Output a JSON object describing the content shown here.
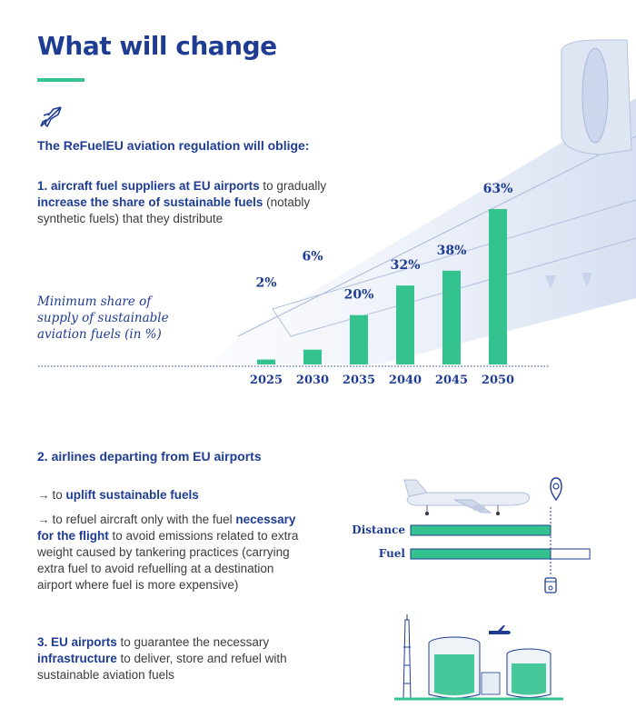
{
  "title": "What will change",
  "intro": "The ReFuelEU aviation regulation will oblige:",
  "obligation1": {
    "prefix": "1. aircraft fuel suppliers at EU airports",
    "t1": " to gradually ",
    "bold2": "increase the share of sustainable fuels",
    "t2": " (notably synthetic fuels) that they distribute"
  },
  "obligation2": {
    "heading": "2. airlines departing from EU airports",
    "bullet1_pre": "to ",
    "bullet1_bold": "uplift sustainable fuels",
    "bullet2_pre": "to refuel aircraft only with the fuel ",
    "bullet2_bold": "necessary for the flight",
    "bullet2_post": " to avoid emissions related to extra weight caused by tankering practices (carrying extra fuel to avoid refuelling at a destination airport where fuel is more expensive)"
  },
  "obligation3": {
    "prefix": "3. EU airports",
    "t1": " to guarantee the necessary ",
    "bold": "infrastructure",
    "t2": " to deliver, store and refuel with sustainable aviation fuels"
  },
  "tankering": {
    "distance_label": "Distance",
    "fuel_label": "Fuel",
    "distance_fraction": 1.0,
    "fuel_fraction": 1.0,
    "fuel_capacity_fraction": 1.28
  },
  "colors": {
    "brand_blue": "#1f3c93",
    "accent_green": "#34c38f",
    "plane_tint": "#dfe6f3"
  },
  "icons": [
    "airplane-icon",
    "location-pin-icon",
    "fuel-drum-icon"
  ],
  "chart_data": {
    "type": "bar",
    "title": "Minimum share of supply of sustainable aviation fuels (in %)",
    "categories": [
      "2025",
      "2030",
      "2035",
      "2040",
      "2045",
      "2050"
    ],
    "values": [
      2,
      6,
      20,
      32,
      38,
      63
    ],
    "value_labels": [
      "2%",
      "6%",
      "20%",
      "32%",
      "38%",
      "63%"
    ],
    "ylim": [
      0,
      63
    ],
    "grid": false
  }
}
